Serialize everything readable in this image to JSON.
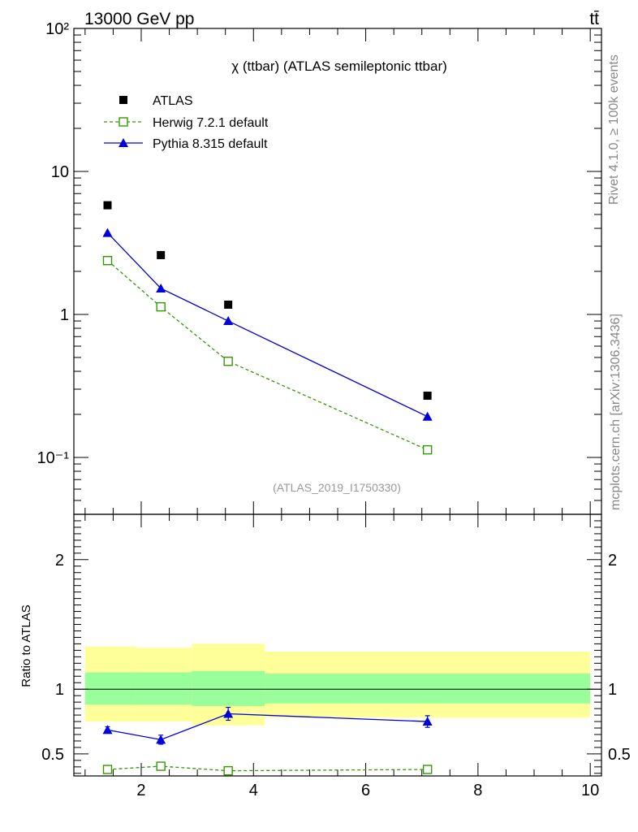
{
  "header": {
    "energy_label": "13000 GeV pp",
    "process_label": "tt̄"
  },
  "side_labels": {
    "rivet": "Rivet 4.1.0, ≥ 100k events",
    "mcplots": "mcplots.cern.ch [arXiv:1306.3436]"
  },
  "chart_data": [
    {
      "type": "scatter",
      "title": "χ (ttbar) (ATLAS semileptonic ttbar)",
      "analysis_label": "(ATLAS_2019_I1750330)",
      "yscale": "log",
      "xlim": [
        0.8,
        10.2
      ],
      "ylim": [
        0.04,
        100
      ],
      "y_ticks": [
        {
          "value": 100,
          "label": "10²"
        },
        {
          "value": 10,
          "label": "10"
        },
        {
          "value": 1,
          "label": "1"
        },
        {
          "value": 0.1,
          "label": "10⁻¹"
        }
      ],
      "x": [
        1.4,
        2.35,
        3.55,
        7.1
      ],
      "series": [
        {
          "name": "ATLAS",
          "values": [
            5.8,
            2.6,
            1.17,
            0.27
          ],
          "color": "#000000"
        },
        {
          "name": "Herwig 7.2.1 default",
          "values": [
            2.38,
            1.13,
            0.47,
            0.113
          ],
          "color": "#339900"
        },
        {
          "name": "Pythia 8.315 default",
          "values": [
            3.72,
            1.52,
            0.9,
            0.193
          ],
          "color": "#0000dd"
        }
      ]
    },
    {
      "type": "scatter",
      "ylabel": "Ratio to ATLAS",
      "xlim": [
        0.8,
        10.2
      ],
      "ylim": [
        0.33,
        2.35
      ],
      "y_ticks": [
        0.5,
        1,
        2
      ],
      "y_tick_labels": [
        "0.5",
        "1",
        "2"
      ],
      "x_ticks": [
        2,
        4,
        6,
        8,
        10
      ],
      "x_tick_labels": [
        "2",
        "4",
        "6",
        "8",
        "10"
      ],
      "x": [
        1.4,
        2.35,
        3.55,
        7.1
      ],
      "bands": [
        {
          "x_range": [
            1.0,
            1.9
          ],
          "inner": [
            0.88,
            1.13
          ],
          "outer": [
            0.75,
            1.33
          ]
        },
        {
          "x_range": [
            1.9,
            2.9
          ],
          "inner": [
            0.88,
            1.13
          ],
          "outer": [
            0.75,
            1.32
          ]
        },
        {
          "x_range": [
            2.9,
            4.2
          ],
          "inner": [
            0.87,
            1.14
          ],
          "outer": [
            0.72,
            1.35
          ]
        },
        {
          "x_range": [
            4.2,
            10.0
          ],
          "inner": [
            0.89,
            1.12
          ],
          "outer": [
            0.78,
            1.29
          ]
        }
      ],
      "series": [
        {
          "name": "Herwig 7.2.1 default",
          "values": [
            0.38,
            0.405,
            0.37,
            0.38
          ],
          "errors": [
            0.012,
            0.018,
            0.02,
            0.03
          ],
          "color": "#339900"
        },
        {
          "name": "Pythia 8.315 default",
          "values": [
            0.685,
            0.61,
            0.81,
            0.75
          ],
          "errors": [
            0.025,
            0.035,
            0.05,
            0.045
          ],
          "color": "#0000dd"
        }
      ]
    }
  ]
}
